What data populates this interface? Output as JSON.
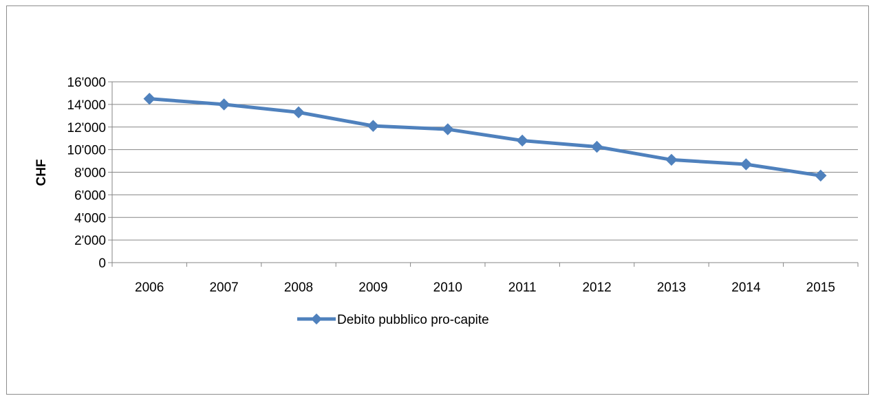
{
  "chart_data": {
    "type": "line",
    "title": "",
    "xlabel": "",
    "ylabel": "CHF",
    "ylim": [
      0,
      16000
    ],
    "y_ticks": [
      {
        "value": 0,
        "label": "0"
      },
      {
        "value": 2000,
        "label": "2'000"
      },
      {
        "value": 4000,
        "label": "4'000"
      },
      {
        "value": 6000,
        "label": "6'000"
      },
      {
        "value": 8000,
        "label": "8'000"
      },
      {
        "value": 10000,
        "label": "10'000"
      },
      {
        "value": 12000,
        "label": "12'000"
      },
      {
        "value": 14000,
        "label": "14'000"
      },
      {
        "value": 16000,
        "label": "16'000"
      }
    ],
    "grid": "horizontal",
    "legend_position": "bottom",
    "categories": [
      "2006",
      "2007",
      "2008",
      "2009",
      "2010",
      "2011",
      "2012",
      "2013",
      "2014",
      "2015"
    ],
    "series": [
      {
        "name": "Debito pubblico pro-capite",
        "color": "#4f81bd",
        "marker": "diamond",
        "values": [
          14500,
          14000,
          13300,
          12100,
          11800,
          10800,
          10250,
          9100,
          8700,
          7700
        ]
      }
    ]
  }
}
